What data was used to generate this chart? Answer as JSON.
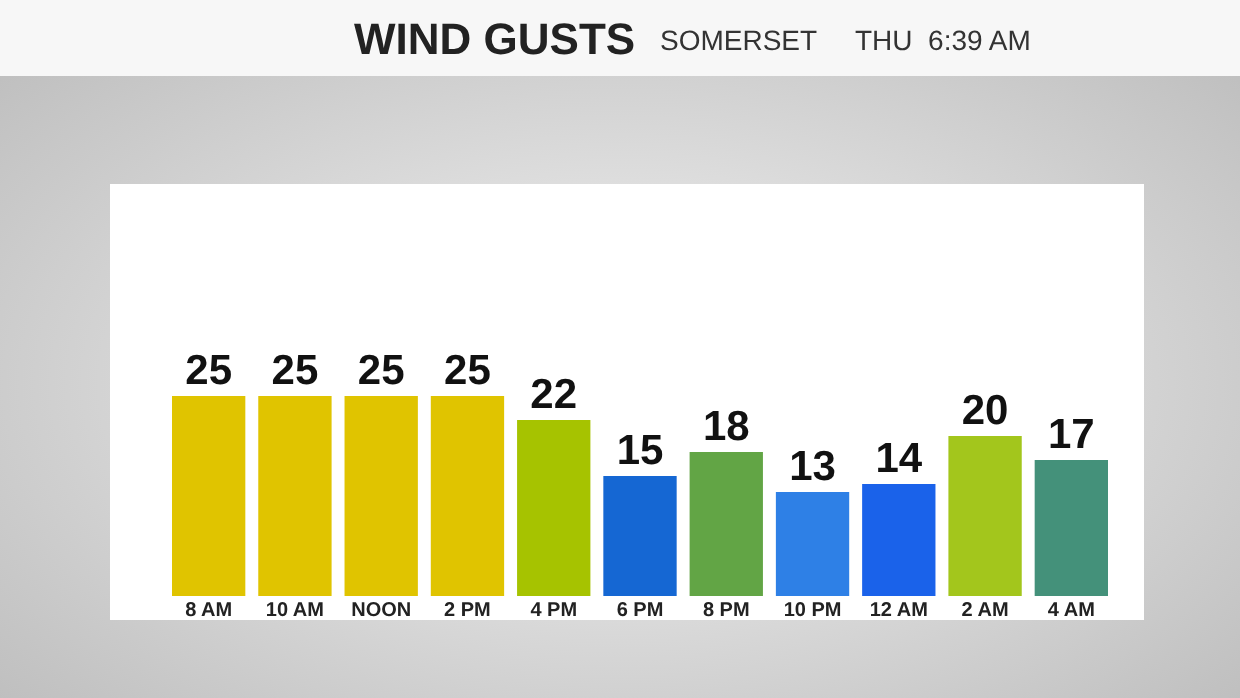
{
  "chart_data": {
    "type": "bar",
    "title": "WIND GUSTS",
    "subtitle": "SOMERSET     THU  6:39 AM",
    "categories": [
      "8 AM",
      "10 AM",
      "NOON",
      "2 PM",
      "4 PM",
      "6 PM",
      "8 PM",
      "10 PM",
      "12 AM",
      "2 AM",
      "4 AM"
    ],
    "values": [
      25,
      25,
      25,
      25,
      22,
      15,
      18,
      13,
      14,
      20,
      17
    ],
    "colors": [
      "#e0c400",
      "#e0c400",
      "#e0c400",
      "#e0c400",
      "#a6c300",
      "#1567d3",
      "#62a545",
      "#2e80e6",
      "#1a62ea",
      "#a3c61c",
      "#44917a"
    ],
    "data_labels": true
  }
}
